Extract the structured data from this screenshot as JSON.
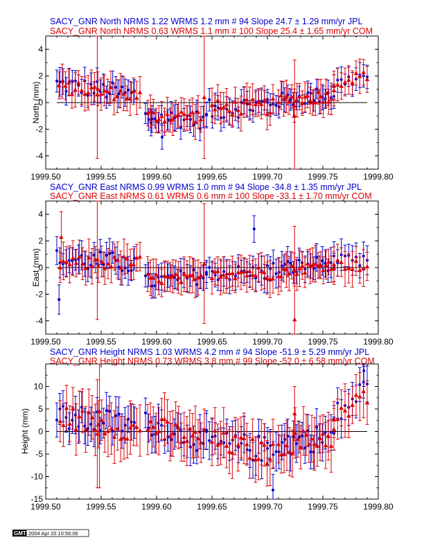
{
  "colors": {
    "jpl": "#0000cc",
    "com": "#dd0000",
    "axis": "#000000"
  },
  "x_axis": {
    "min": 1999.5,
    "max": 1999.8,
    "ticks": [
      "1999.50",
      "1999.55",
      "1999.60",
      "1999.65",
      "1999.70",
      "1999.75",
      "1999.80"
    ]
  },
  "stamp": {
    "logo": "GMT",
    "time": "2004 Apr 20 10:56:06"
  },
  "chart_data": [
    {
      "type": "scatter",
      "component": "North",
      "ylabel": "North (mm)",
      "ylim": [
        -5,
        5
      ],
      "yticks": [
        -4,
        -2,
        0,
        2,
        4
      ],
      "grid": false,
      "legend": "top",
      "series": [
        {
          "name": "SACY_GNR North NRMS  1.22 WRMS  1.2 mm # 94 Slope   24.7 ±  1.29 mm/yr JPL",
          "marker": "circle",
          "color": "#0000cc",
          "segments": [
            {
              "x0": 1999.51,
              "x1": 1999.58,
              "n": 26,
              "start": 1.4,
              "end": 0.6,
              "amp": 0.7,
              "err": 0.9
            },
            {
              "x0": 1999.59,
              "x1": 1999.645,
              "n": 20,
              "start": -1.1,
              "end": -1.3,
              "amp": 0.7,
              "err": 0.85
            },
            {
              "x0": 1999.645,
              "x1": 1999.7,
              "n": 22,
              "start": -0.6,
              "end": -0.1,
              "amp": 0.8,
              "err": 0.85
            },
            {
              "x0": 1999.7,
              "x1": 1999.76,
              "n": 24,
              "start": 0.0,
              "end": 0.7,
              "amp": 0.6,
              "err": 0.8
            },
            {
              "x0": 1999.76,
              "x1": 1999.79,
              "n": 10,
              "start": 1.4,
              "end": 2.0,
              "amp": 0.5,
              "err": 0.9
            }
          ],
          "outliers": [
            {
              "x": 1999.595,
              "y": -1.5,
              "err": 1.0
            },
            {
              "x": 1999.605,
              "y": -2.6,
              "err": 0.9
            }
          ]
        },
        {
          "name": "SACY_GNR North NRMS  0.63 WRMS  1.1 mm # 100 Slope   25.4 ±  1.65 mm/yr COM",
          "marker": "triangle",
          "color": "#dd0000",
          "segments": [
            {
              "x0": 1999.512,
              "x1": 1999.585,
              "n": 26,
              "start": 1.2,
              "end": 0.5,
              "amp": 0.5,
              "err": 1.1
            },
            {
              "x0": 1999.592,
              "x1": 1999.64,
              "n": 20,
              "start": -1.0,
              "end": -1.0,
              "amp": 0.5,
              "err": 1.1
            },
            {
              "x0": 1999.65,
              "x1": 1999.705,
              "n": 22,
              "start": -0.4,
              "end": -0.3,
              "amp": 0.6,
              "err": 1.1
            },
            {
              "x0": 1999.71,
              "x1": 1999.76,
              "n": 22,
              "start": 0.1,
              "end": 0.6,
              "amp": 0.5,
              "err": 1.1
            },
            {
              "x0": 1999.76,
              "x1": 1999.79,
              "n": 10,
              "start": 1.5,
              "end": 2.1,
              "amp": 0.4,
              "err": 1.1
            }
          ],
          "outliers": [
            {
              "x": 1999.5465,
              "y": 0.6,
              "err": 4.8
            },
            {
              "x": 1999.643,
              "y": 0.4,
              "err": 4.6
            },
            {
              "x": 1999.7245,
              "y": -1.0,
              "err": 4.2
            }
          ]
        }
      ]
    },
    {
      "type": "scatter",
      "component": "East",
      "ylabel": "East (mm)",
      "ylim": [
        -5,
        5
      ],
      "yticks": [
        -4,
        -2,
        0,
        2,
        4
      ],
      "grid": false,
      "legend": "top",
      "series": [
        {
          "name": "SACY_GNR East NRMS  0.99 WRMS  1.0 mm # 94 Slope  -34.8 ±  1.35 mm/yr JPL",
          "marker": "circle",
          "color": "#0000cc",
          "segments": [
            {
              "x0": 1999.51,
              "x1": 1999.58,
              "n": 26,
              "start": 0.6,
              "end": 0.3,
              "amp": 0.8,
              "err": 0.95
            },
            {
              "x0": 1999.59,
              "x1": 1999.645,
              "n": 20,
              "start": -1.1,
              "end": -0.6,
              "amp": 0.6,
              "err": 0.95
            },
            {
              "x0": 1999.645,
              "x1": 1999.7,
              "n": 22,
              "start": -0.4,
              "end": -0.4,
              "amp": 0.6,
              "err": 0.95
            },
            {
              "x0": 1999.7,
              "x1": 1999.76,
              "n": 24,
              "start": -0.2,
              "end": 0.4,
              "amp": 0.6,
              "err": 0.95
            },
            {
              "x0": 1999.76,
              "x1": 1999.79,
              "n": 10,
              "start": 0.4,
              "end": 0.3,
              "amp": 0.6,
              "err": 1.0
            }
          ],
          "outliers": [
            {
              "x": 1999.512,
              "y": -2.4,
              "err": 1.1
            },
            {
              "x": 1999.688,
              "y": 2.9,
              "err": 1.0
            }
          ]
        },
        {
          "name": "SACY_GNR East NRMS  0.61 WRMS  0.6 mm # 100 Slope  -33.1 ±  1.70 mm/yr COM",
          "marker": "triangle",
          "color": "#dd0000",
          "segments": [
            {
              "x0": 1999.513,
              "x1": 1999.585,
              "n": 26,
              "start": 0.3,
              "end": 0.4,
              "amp": 0.5,
              "err": 1.2
            },
            {
              "x0": 1999.592,
              "x1": 1999.64,
              "n": 20,
              "start": -0.8,
              "end": -0.9,
              "amp": 0.4,
              "err": 1.2
            },
            {
              "x0": 1999.65,
              "x1": 1999.705,
              "n": 22,
              "start": -0.3,
              "end": -0.4,
              "amp": 0.5,
              "err": 1.2
            },
            {
              "x0": 1999.71,
              "x1": 1999.76,
              "n": 22,
              "start": -0.3,
              "end": 0.3,
              "amp": 0.4,
              "err": 1.2
            },
            {
              "x0": 1999.76,
              "x1": 1999.79,
              "n": 10,
              "start": 0.3,
              "end": 0.1,
              "amp": 0.4,
              "err": 1.2
            }
          ],
          "outliers": [
            {
              "x": 1999.514,
              "y": 2.3,
              "err": 1.9
            },
            {
              "x": 1999.5465,
              "y": 0.6,
              "err": 4.5
            },
            {
              "x": 1999.643,
              "y": 0.3,
              "err": 4.5
            },
            {
              "x": 1999.7245,
              "y": -3.9,
              "err": 7.0
            }
          ]
        }
      ]
    },
    {
      "type": "scatter",
      "component": "Height",
      "ylabel": "Height (mm)",
      "ylim": [
        -15,
        15
      ],
      "yticks": [
        -15,
        -10,
        -5,
        0,
        5,
        10
      ],
      "grid": false,
      "legend": "top",
      "series": [
        {
          "name": "SACY_GNR Height NRMS  1.03 WRMS  4.2 mm # 94 Slope  -51.9 ±  5.29 mm/yr JPL",
          "marker": "circle",
          "color": "#0000cc",
          "segments": [
            {
              "x0": 1999.51,
              "x1": 1999.58,
              "n": 26,
              "start": 3.0,
              "end": 1.5,
              "amp": 3.0,
              "err": 3.6
            },
            {
              "x0": 1999.59,
              "x1": 1999.645,
              "n": 20,
              "start": 2.0,
              "end": -2.5,
              "amp": 2.5,
              "err": 3.6
            },
            {
              "x0": 1999.645,
              "x1": 1999.7,
              "n": 22,
              "start": -2.5,
              "end": -4.0,
              "amp": 3.0,
              "err": 3.6
            },
            {
              "x0": 1999.7,
              "x1": 1999.76,
              "n": 24,
              "start": -3.0,
              "end": -1.0,
              "amp": 3.0,
              "err": 3.6
            },
            {
              "x0": 1999.76,
              "x1": 1999.79,
              "n": 10,
              "start": 3.0,
              "end": 10.0,
              "amp": 3.0,
              "err": 3.6
            }
          ],
          "outliers": [
            {
              "x": 1999.787,
              "y": 13.5,
              "err": 3.5
            },
            {
              "x": 1999.705,
              "y": -13.0,
              "err": 3.5
            }
          ]
        },
        {
          "name": "SACY_GNR Height NRMS  0.73 WRMS  3.8 mm # 99 Slope  -52.0 ±  6.58 mm/yr COM",
          "marker": "triangle",
          "color": "#dd0000",
          "segments": [
            {
              "x0": 1999.513,
              "x1": 1999.585,
              "n": 26,
              "start": 3.5,
              "end": 0.0,
              "amp": 2.5,
              "err": 5.0
            },
            {
              "x0": 1999.592,
              "x1": 1999.64,
              "n": 20,
              "start": 1.5,
              "end": -2.0,
              "amp": 2.5,
              "err": 5.0
            },
            {
              "x0": 1999.65,
              "x1": 1999.705,
              "n": 22,
              "start": -2.0,
              "end": -5.0,
              "amp": 2.5,
              "err": 5.0
            },
            {
              "x0": 1999.71,
              "x1": 1999.76,
              "n": 21,
              "start": -3.0,
              "end": -1.0,
              "amp": 2.5,
              "err": 5.0
            },
            {
              "x0": 1999.76,
              "x1": 1999.79,
              "n": 10,
              "start": 2.0,
              "end": 8.0,
              "amp": 2.5,
              "err": 5.0
            }
          ],
          "outliers": [
            {
              "x": 1999.5465,
              "y": -0.5,
              "err": 12.0
            },
            {
              "x": 1999.5485,
              "y": 4.5,
              "err": 17.0
            },
            {
              "x": 1999.643,
              "y": 0.5,
              "err": 4.5
            },
            {
              "x": 1999.7245,
              "y": 4.0,
              "err": 6.0
            }
          ]
        }
      ]
    }
  ]
}
